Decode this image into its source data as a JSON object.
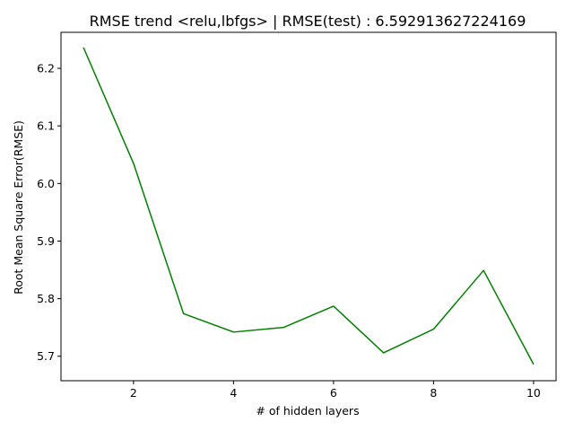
{
  "chart_data": {
    "type": "line",
    "title": "RMSE trend <relu,lbfgs> | RMSE(test) : 6.592913627224169",
    "xlabel": "# of hidden layers",
    "ylabel": "Root Mean Square Error(RMSE)",
    "xlim": [
      0.55,
      10.45
    ],
    "ylim": [
      5.6575,
      6.2625
    ],
    "xticks": [
      2,
      4,
      6,
      8,
      10
    ],
    "yticks": [
      5.7,
      5.8,
      5.9,
      6.0,
      6.1,
      6.2
    ],
    "xtick_labels": [
      "2",
      "4",
      "6",
      "8",
      "10"
    ],
    "ytick_labels": [
      "5.7",
      "5.8",
      "5.9",
      "6.0",
      "6.1",
      "6.2"
    ],
    "grid": false,
    "series": [
      {
        "color": "#008000",
        "x": [
          1,
          2,
          3,
          4,
          5,
          6,
          7,
          8,
          9,
          10
        ],
        "y": [
          6.236,
          6.035,
          5.774,
          5.742,
          5.75,
          5.787,
          5.706,
          5.747,
          5.849,
          5.686
        ]
      }
    ]
  }
}
